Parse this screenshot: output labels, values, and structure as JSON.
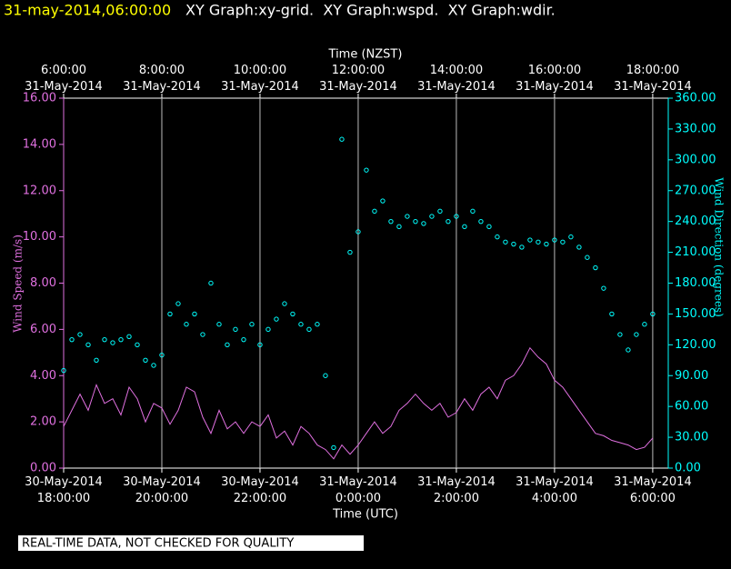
{
  "chart_data": {
    "type": "dual-axis",
    "header": {
      "timestamp": "31-may-2014,06:00:00",
      "graphs": "XY Graph:xy-grid.  XY Graph:wspd.  XY Graph:wdir."
    },
    "footer_note": "REAL-TIME DATA, NOT CHECKED FOR QUALITY",
    "x_label": "Time (UTC)",
    "x2_label": "Time (NZST)",
    "y_label": "Wind Speed (m/s)",
    "y2_label": "Wind Direction (degrees)",
    "xlim": [
      "2014-05-30 18:00:00",
      "2014-05-31 06:19:00"
    ],
    "xticks": [
      {
        "value": "2014-05-30 18:00:00",
        "label": "30-May-2014 18:00:00"
      },
      {
        "value": "2014-05-30 20:00:00",
        "label": "30-May-2014 20:00:00"
      },
      {
        "value": "2014-05-30 22:00:00",
        "label": "30-May-2014 22:00:00"
      },
      {
        "value": "2014-05-31 00:00:00",
        "label": "31-May-2014 0:00:00"
      },
      {
        "value": "2014-05-31 02:00:00",
        "label": "31-May-2014 2:00:00"
      },
      {
        "value": "2014-05-31 04:00:00",
        "label": "31-May-2014 4:00:00"
      },
      {
        "value": "2014-05-31 06:00:00",
        "label": "31-May-2014 6:00:00"
      }
    ],
    "x2lim": [
      "2014-05-31 06:00:00",
      "2014-05-31 18:19:00"
    ],
    "x2ticks": [
      {
        "value": "2014-05-31 06:00:00",
        "label": "6:00:00 31-May-2014"
      },
      {
        "value": "2014-05-31 08:00:00",
        "label": "8:00:00 31-May-2014"
      },
      {
        "value": "2014-05-31 10:00:00",
        "label": "10:00:00 31-May-2014"
      },
      {
        "value": "2014-05-31 12:00:00",
        "label": "12:00:00 31-May-2014"
      },
      {
        "value": "2014-05-31 14:00:00",
        "label": "14:00:00 31-May-2014"
      },
      {
        "value": "2014-05-31 16:00:00",
        "label": "16:00:00 31-May-2014"
      },
      {
        "value": "2014-05-31 18:00:00",
        "label": "18:00:00 31-May-2014"
      }
    ],
    "ylim": [
      0,
      16
    ],
    "yticks": [
      {
        "value": 0,
        "label": "0.00"
      },
      {
        "value": 2,
        "label": "2.00"
      },
      {
        "value": 4,
        "label": "4.00"
      },
      {
        "value": 6,
        "label": "6.00"
      },
      {
        "value": 8,
        "label": "8.00"
      },
      {
        "value": 10,
        "label": "10.00"
      },
      {
        "value": 12,
        "label": "12.00"
      },
      {
        "value": 14,
        "label": "14.00"
      },
      {
        "value": 16,
        "label": "16.00"
      }
    ],
    "y2lim": [
      0,
      360
    ],
    "y2ticks": [
      {
        "value": 0,
        "label": "0.00"
      },
      {
        "value": 30,
        "label": "30.00"
      },
      {
        "value": 60,
        "label": "60.00"
      },
      {
        "value": 90,
        "label": "90.00"
      },
      {
        "value": 120,
        "label": "120.00"
      },
      {
        "value": 150,
        "label": "150.00"
      },
      {
        "value": 180,
        "label": "180.00"
      },
      {
        "value": 210,
        "label": "210.00"
      },
      {
        "value": 240,
        "label": "240.00"
      },
      {
        "value": 270,
        "label": "270.00"
      },
      {
        "value": 300,
        "label": "300.00"
      },
      {
        "value": 330,
        "label": "330.00"
      },
      {
        "value": 360,
        "label": "360.00"
      }
    ],
    "grid": true,
    "x": [
      "2014-05-30 18:00:00",
      "2014-05-30 18:10:00",
      "2014-05-30 18:20:00",
      "2014-05-30 18:30:00",
      "2014-05-30 18:40:00",
      "2014-05-30 18:50:00",
      "2014-05-30 19:00:00",
      "2014-05-30 19:10:00",
      "2014-05-30 19:20:00",
      "2014-05-30 19:30:00",
      "2014-05-30 19:40:00",
      "2014-05-30 19:50:00",
      "2014-05-30 20:00:00",
      "2014-05-30 20:10:00",
      "2014-05-30 20:20:00",
      "2014-05-30 20:30:00",
      "2014-05-30 20:40:00",
      "2014-05-30 20:50:00",
      "2014-05-30 21:00:00",
      "2014-05-30 21:10:00",
      "2014-05-30 21:20:00",
      "2014-05-30 21:30:00",
      "2014-05-30 21:40:00",
      "2014-05-30 21:50:00",
      "2014-05-30 22:00:00",
      "2014-05-30 22:10:00",
      "2014-05-30 22:20:00",
      "2014-05-30 22:30:00",
      "2014-05-30 22:40:00",
      "2014-05-30 22:50:00",
      "2014-05-30 23:00:00",
      "2014-05-30 23:10:00",
      "2014-05-30 23:20:00",
      "2014-05-30 23:30:00",
      "2014-05-30 23:40:00",
      "2014-05-30 23:50:00",
      "2014-05-31 00:00:00",
      "2014-05-31 00:10:00",
      "2014-05-31 00:20:00",
      "2014-05-31 00:30:00",
      "2014-05-31 00:40:00",
      "2014-05-31 00:50:00",
      "2014-05-31 01:00:00",
      "2014-05-31 01:10:00",
      "2014-05-31 01:20:00",
      "2014-05-31 01:30:00",
      "2014-05-31 01:40:00",
      "2014-05-31 01:50:00",
      "2014-05-31 02:00:00",
      "2014-05-31 02:10:00",
      "2014-05-31 02:20:00",
      "2014-05-31 02:30:00",
      "2014-05-31 02:40:00",
      "2014-05-31 02:50:00",
      "2014-05-31 03:00:00",
      "2014-05-31 03:10:00",
      "2014-05-31 03:20:00",
      "2014-05-31 03:30:00",
      "2014-05-31 03:40:00",
      "2014-05-31 03:50:00",
      "2014-05-31 04:00:00",
      "2014-05-31 04:10:00",
      "2014-05-31 04:20:00",
      "2014-05-31 04:30:00",
      "2014-05-31 04:40:00",
      "2014-05-31 04:50:00",
      "2014-05-31 05:00:00",
      "2014-05-31 05:10:00",
      "2014-05-31 05:20:00",
      "2014-05-31 05:30:00",
      "2014-05-31 05:40:00",
      "2014-05-31 05:50:00",
      "2014-05-31 06:00:00"
    ],
    "series": [
      {
        "name": "Wind Speed",
        "kind": "line",
        "color": "#e070e0",
        "values": [
          1.8,
          2.5,
          3.2,
          2.5,
          3.6,
          2.8,
          3.0,
          2.3,
          3.5,
          3.0,
          2.0,
          2.8,
          2.6,
          1.9,
          2.5,
          3.5,
          3.3,
          2.2,
          1.5,
          2.5,
          1.7,
          2.0,
          1.5,
          2.0,
          1.8,
          2.3,
          1.3,
          1.6,
          1.0,
          1.8,
          1.5,
          1.0,
          0.8,
          0.4,
          1.0,
          0.6,
          1.0,
          1.5,
          2.0,
          1.5,
          1.8,
          2.5,
          2.8,
          3.2,
          2.8,
          2.5,
          2.8,
          2.2,
          2.4,
          3.0,
          2.5,
          3.2,
          3.5,
          3.0,
          3.8,
          4.0,
          4.5,
          5.2,
          4.8,
          4.5,
          3.8,
          3.5,
          3.0,
          2.5,
          2.0,
          1.5,
          1.4,
          1.2,
          1.1,
          1.0,
          0.8,
          0.9,
          1.3
        ]
      },
      {
        "name": "Wind Direction",
        "kind": "scatter",
        "axis": "y2",
        "color": "#00ffff",
        "values": [
          95,
          125,
          130,
          120,
          105,
          125,
          122,
          125,
          128,
          120,
          105,
          100,
          110,
          150,
          160,
          140,
          150,
          130,
          180,
          140,
          120,
          135,
          125,
          140,
          120,
          135,
          145,
          160,
          150,
          140,
          135,
          140,
          90,
          20,
          320,
          210,
          230,
          290,
          250,
          260,
          240,
          235,
          245,
          240,
          238,
          245,
          250,
          240,
          245,
          235,
          250,
          240,
          235,
          225,
          220,
          218,
          215,
          222,
          220,
          218,
          222,
          220,
          225,
          215,
          205,
          195,
          175,
          150,
          130,
          115,
          130,
          140,
          150
        ]
      }
    ]
  }
}
